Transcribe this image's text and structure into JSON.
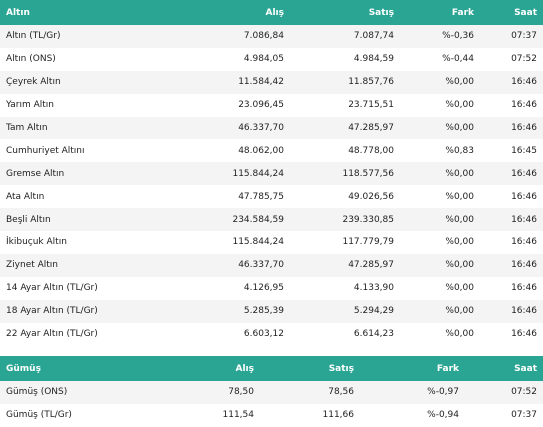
{
  "gold": {
    "headers": {
      "name": "Altın",
      "buy": "Alış",
      "sell": "Satış",
      "change": "Fark",
      "time": "Saat"
    },
    "rows": [
      {
        "name": "Altın (TL/Gr)",
        "buy": "7.086,84",
        "sell": "7.087,74",
        "change": "%-0,36",
        "time": "07:37"
      },
      {
        "name": "Altın (ONS)",
        "buy": "4.984,05",
        "sell": "4.984,59",
        "change": "%-0,44",
        "time": "07:52"
      },
      {
        "name": "Çeyrek Altın",
        "buy": "11.584,42",
        "sell": "11.857,76",
        "change": "%0,00",
        "time": "16:46"
      },
      {
        "name": "Yarım Altın",
        "buy": "23.096,45",
        "sell": "23.715,51",
        "change": "%0,00",
        "time": "16:46"
      },
      {
        "name": "Tam Altın",
        "buy": "46.337,70",
        "sell": "47.285,97",
        "change": "%0,00",
        "time": "16:46"
      },
      {
        "name": "Cumhuriyet Altını",
        "buy": "48.062,00",
        "sell": "48.778,00",
        "change": "%0,83",
        "time": "16:45"
      },
      {
        "name": "Gremse Altın",
        "buy": "115.844,24",
        "sell": "118.577,56",
        "change": "%0,00",
        "time": "16:46"
      },
      {
        "name": "Ata Altın",
        "buy": "47.785,75",
        "sell": "49.026,56",
        "change": "%0,00",
        "time": "16:46"
      },
      {
        "name": "Beşli Altın",
        "buy": "234.584,59",
        "sell": "239.330,85",
        "change": "%0,00",
        "time": "16:46"
      },
      {
        "name": "İkibuçuk Altın",
        "buy": "115.844,24",
        "sell": "117.779,79",
        "change": "%0,00",
        "time": "16:46"
      },
      {
        "name": "Ziynet Altın",
        "buy": "46.337,70",
        "sell": "47.285,97",
        "change": "%0,00",
        "time": "16:46"
      },
      {
        "name": "14 Ayar Altın (TL/Gr)",
        "buy": "4.126,95",
        "sell": "4.133,90",
        "change": "%0,00",
        "time": "16:46"
      },
      {
        "name": "18 Ayar Altın (TL/Gr)",
        "buy": "5.285,39",
        "sell": "5.294,29",
        "change": "%0,00",
        "time": "16:46"
      },
      {
        "name": "22 Ayar Altın (TL/Gr)",
        "buy": "6.603,12",
        "sell": "6.614,23",
        "change": "%0,00",
        "time": "16:46"
      }
    ]
  },
  "silver": {
    "headers": {
      "name": "Gümüş",
      "buy": "Alış",
      "sell": "Satış",
      "change": "Fark",
      "time": "Saat"
    },
    "rows": [
      {
        "name": "Gümüş (ONS)",
        "buy": "78,50",
        "sell": "78,56",
        "change": "%-0,97",
        "time": "07:52"
      },
      {
        "name": "Gümüş (TL/Gr)",
        "buy": "111,54",
        "sell": "111,66",
        "change": "%-0,94",
        "time": "07:37"
      }
    ]
  },
  "colors": {
    "header_bg": "#2aa593",
    "row_alt_bg": "#f4f4f4"
  }
}
